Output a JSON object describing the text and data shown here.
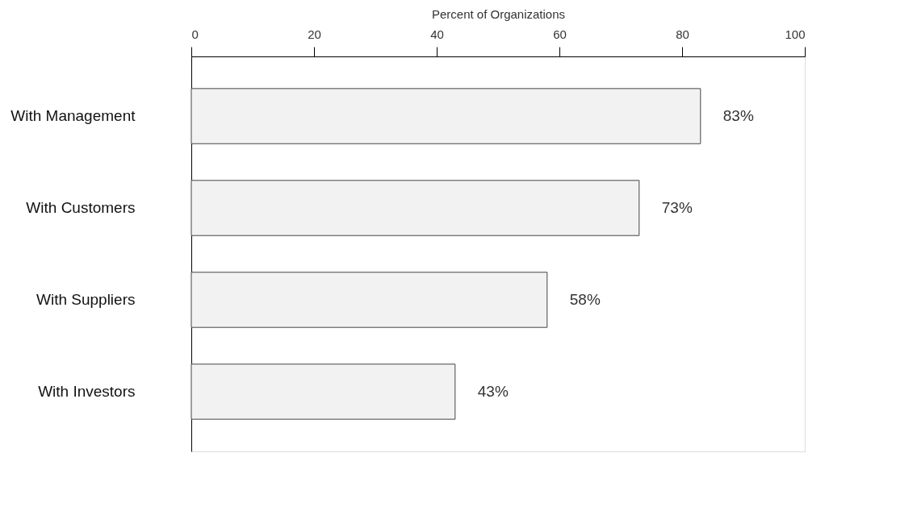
{
  "chart_data": {
    "type": "bar",
    "orientation": "horizontal",
    "xlabel": "Percent of Organizations",
    "categories": [
      "With Management",
      "With Customers",
      "With Suppliers",
      "With Investors"
    ],
    "values": [
      83,
      73,
      58,
      43
    ],
    "color": "#f2f2f2",
    "value_labels": [
      "83%",
      "73%",
      "58%",
      "43%"
    ],
    "xlim": [
      0,
      100
    ],
    "xticks": [
      0,
      20,
      40,
      60,
      80,
      100
    ],
    "grid": false
  }
}
